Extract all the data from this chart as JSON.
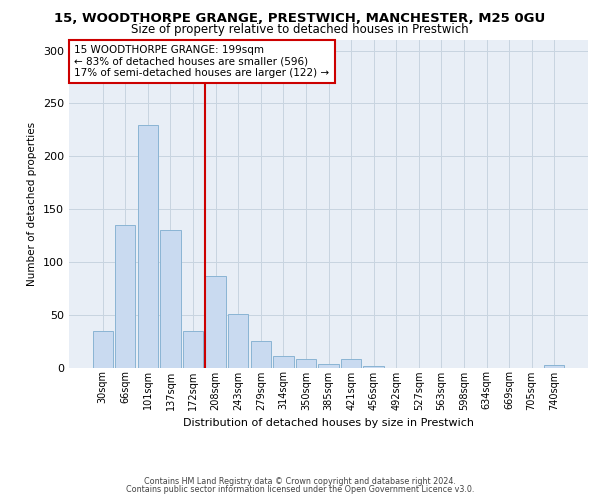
{
  "title": "15, WOODTHORPE GRANGE, PRESTWICH, MANCHESTER, M25 0GU",
  "subtitle": "Size of property relative to detached houses in Prestwich",
  "xlabel": "Distribution of detached houses by size in Prestwich",
  "ylabel": "Number of detached properties",
  "bar_labels": [
    "30sqm",
    "66sqm",
    "101sqm",
    "137sqm",
    "172sqm",
    "208sqm",
    "243sqm",
    "279sqm",
    "314sqm",
    "350sqm",
    "385sqm",
    "421sqm",
    "456sqm",
    "492sqm",
    "527sqm",
    "563sqm",
    "598sqm",
    "634sqm",
    "669sqm",
    "705sqm",
    "740sqm"
  ],
  "bar_values": [
    35,
    135,
    230,
    130,
    35,
    87,
    51,
    25,
    11,
    8,
    3,
    8,
    1,
    0,
    0,
    0,
    0,
    0,
    0,
    0,
    2
  ],
  "bar_color": "#c9daf0",
  "bar_edge_color": "#8ab4d4",
  "vline_color": "#cc0000",
  "vline_bar_index": 5,
  "annotation_text": "15 WOODTHORPE GRANGE: 199sqm\n← 83% of detached houses are smaller (596)\n17% of semi-detached houses are larger (122) →",
  "ylim_max": 310,
  "yticks": [
    0,
    50,
    100,
    150,
    200,
    250,
    300
  ],
  "grid_color": "#c8d4e0",
  "background_color": "#e8eef6",
  "footer_line1": "Contains HM Land Registry data © Crown copyright and database right 2024.",
  "footer_line2": "Contains public sector information licensed under the Open Government Licence v3.0."
}
